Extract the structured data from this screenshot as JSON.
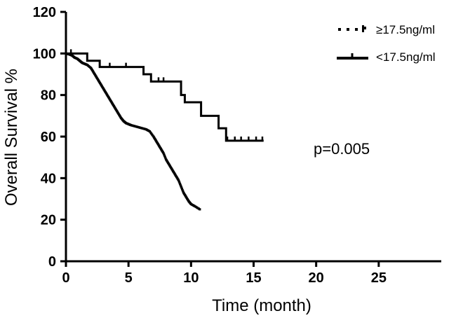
{
  "chart_data": {
    "type": "line",
    "subtype": "kaplan-meier",
    "title": "",
    "xlabel": "Time (month)",
    "ylabel": "Overall Survival %",
    "xlim": [
      0,
      30
    ],
    "ylim": [
      0,
      120
    ],
    "x_ticks": [
      0,
      5,
      10,
      15,
      20,
      25
    ],
    "y_ticks": [
      0,
      20,
      40,
      60,
      80,
      100,
      120
    ],
    "grid": false,
    "legend_position": "top-right",
    "annotation": "p=0.005",
    "series": [
      {
        "name": "≥17.5ng/ml",
        "style": "dotted",
        "color": "#000000",
        "points": [
          [
            0.0,
            100
          ],
          [
            0.3,
            99.5
          ],
          [
            0.5,
            99
          ],
          [
            0.7,
            98
          ],
          [
            0.9,
            97.5
          ],
          [
            1.1,
            96.5
          ],
          [
            1.3,
            95.5
          ],
          [
            1.5,
            95
          ],
          [
            1.7,
            94.5
          ],
          [
            2.0,
            93
          ],
          [
            2.2,
            91
          ],
          [
            2.4,
            89
          ],
          [
            2.6,
            87
          ],
          [
            2.8,
            85
          ],
          [
            3.0,
            83
          ],
          [
            3.2,
            81
          ],
          [
            3.4,
            79
          ],
          [
            3.6,
            77
          ],
          [
            3.8,
            75
          ],
          [
            4.0,
            73
          ],
          [
            4.2,
            71
          ],
          [
            4.4,
            69
          ],
          [
            4.6,
            67.5
          ],
          [
            4.8,
            66.5
          ],
          [
            5.0,
            66
          ],
          [
            5.2,
            65.5
          ],
          [
            5.5,
            65
          ],
          [
            5.8,
            64.5
          ],
          [
            6.1,
            64
          ],
          [
            6.4,
            63.5
          ],
          [
            6.7,
            62.5
          ],
          [
            7.0,
            60
          ],
          [
            7.2,
            58
          ],
          [
            7.4,
            56
          ],
          [
            7.6,
            54
          ],
          [
            7.8,
            52
          ],
          [
            8.0,
            49
          ],
          [
            8.2,
            47
          ],
          [
            8.4,
            45
          ],
          [
            8.6,
            43
          ],
          [
            8.8,
            41
          ],
          [
            9.0,
            39
          ],
          [
            9.2,
            36
          ],
          [
            9.4,
            33
          ],
          [
            9.6,
            31
          ],
          [
            9.8,
            29
          ],
          [
            10.0,
            27.5
          ],
          [
            10.3,
            26.5
          ],
          [
            10.7,
            25
          ]
        ]
      },
      {
        "name": "<17.5ng/ml",
        "style": "solid-step",
        "color": "#000000",
        "steps": [
          [
            0,
            100
          ],
          [
            1.7,
            96.5
          ],
          [
            2.7,
            93.5
          ],
          [
            6.2,
            90
          ],
          [
            6.8,
            86.5
          ],
          [
            9.2,
            80
          ],
          [
            9.5,
            76.5
          ],
          [
            10.8,
            70
          ],
          [
            12.2,
            64
          ],
          [
            12.8,
            58
          ],
          [
            15.8,
            58
          ]
        ],
        "censor_marks": [
          [
            0.4,
            100
          ],
          [
            3.5,
            93.5
          ],
          [
            4.8,
            93.5
          ],
          [
            7.4,
            86.5
          ],
          [
            7.8,
            86.5
          ],
          [
            12.9,
            58
          ],
          [
            13.5,
            58
          ],
          [
            14.0,
            58
          ],
          [
            14.6,
            58
          ],
          [
            15.2,
            58
          ],
          [
            15.7,
            58
          ]
        ]
      }
    ]
  }
}
